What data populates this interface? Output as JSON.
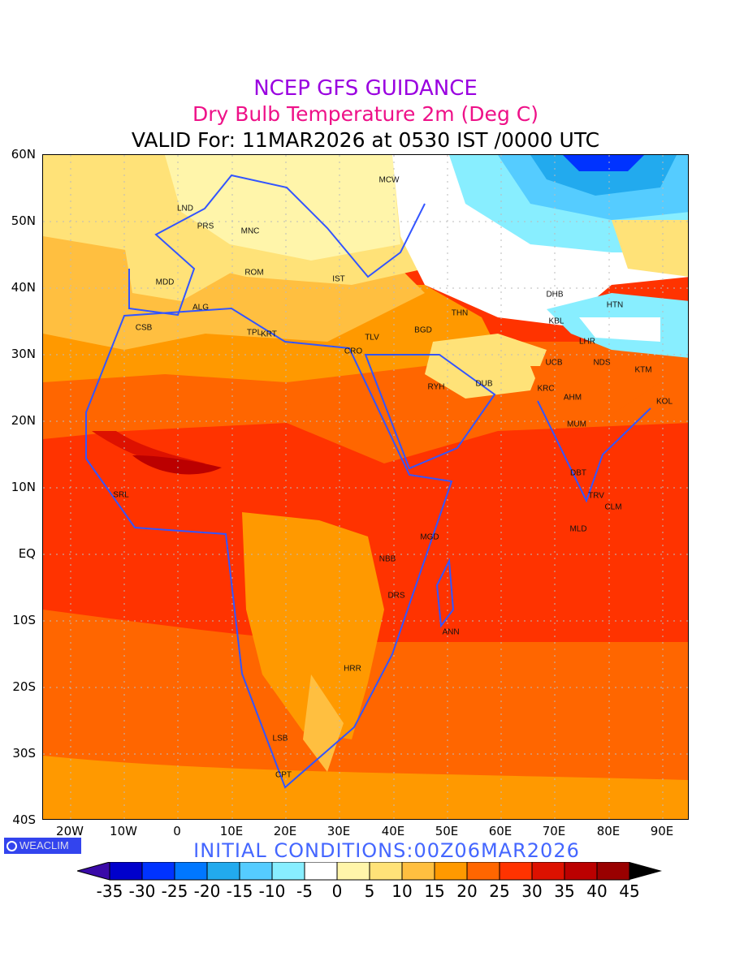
{
  "titles": {
    "line1": "NCEP GFS GUIDANCE",
    "line2": "Dry Bulb Temperature 2m (Deg C)",
    "line3": "VALID For: 11MAR2026 at 0530 IST /0000 UTC"
  },
  "axes": {
    "lat_labels": [
      "60N",
      "50N",
      "40N",
      "30N",
      "20N",
      "10N",
      "EQ",
      "10S",
      "20S",
      "30S",
      "40S"
    ],
    "lon_labels": [
      "20W",
      "10W",
      "0",
      "10E",
      "20E",
      "30E",
      "40E",
      "50E",
      "60E",
      "70E",
      "80E",
      "90E"
    ]
  },
  "stations": [
    "LND",
    "PRS",
    "MCW",
    "MNC",
    "ROM",
    "IST",
    "MDD",
    "ALG",
    "CSB",
    "TPL",
    "KRT",
    "CRO",
    "TLV",
    "BGD",
    "THN",
    "DHB",
    "KBL",
    "HTN",
    "LHR",
    "NDS",
    "KTM",
    "UCB",
    "KRC",
    "DUB",
    "AHM",
    "KOL",
    "MUM",
    "RYH",
    "DBT",
    "TRV",
    "CLM",
    "MLD",
    "SRL",
    "MGD",
    "NBB",
    "DRS",
    "ANN",
    "HRR",
    "LSB",
    "CPT"
  ],
  "branding": {
    "badge": "WEACLIM",
    "initial": "INITIAL CONDITIONS:00Z06MAR2026"
  },
  "colorbar": {
    "labels": [
      "-35",
      "-30",
      "-25",
      "-20",
      "-15",
      "-10",
      "-5",
      "0",
      "5",
      "10",
      "15",
      "20",
      "25",
      "30",
      "35",
      "40",
      "45"
    ],
    "colors": [
      "#0000cc",
      "#0033ff",
      "#0077ff",
      "#22aaee",
      "#55ccff",
      "#88eeff",
      "#ffffff",
      "#fff5aa",
      "#ffe278",
      "#ffbf40",
      "#ff9900",
      "#ff6600",
      "#ff3300",
      "#dd1100",
      "#bb0000",
      "#990000"
    ],
    "under_color": "#3a0aa8",
    "over_color": "#000000"
  }
}
